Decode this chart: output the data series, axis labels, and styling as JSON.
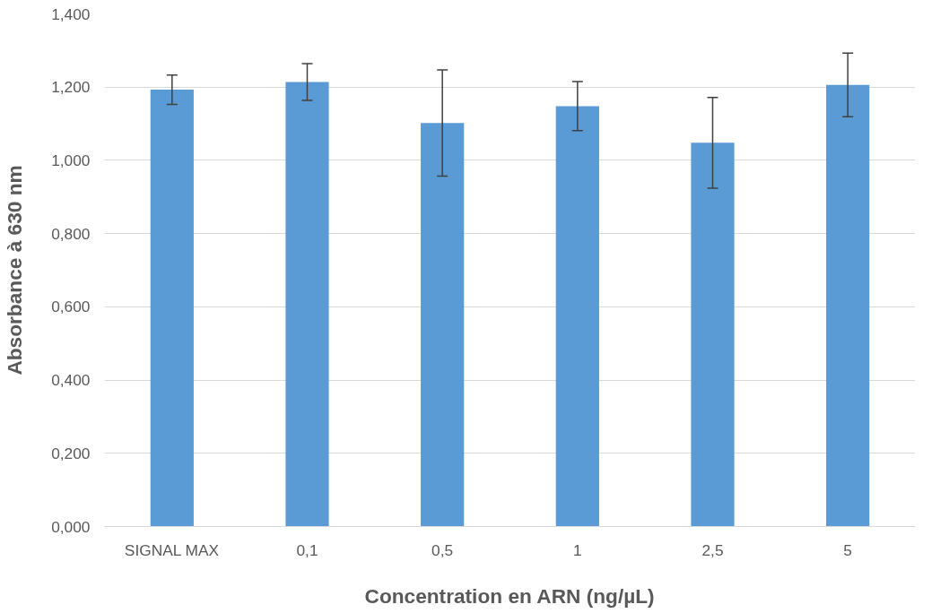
{
  "chart_data": {
    "type": "bar",
    "xlabel": "Concentration en ARN (ng/µL)",
    "ylabel": "Absorbance à 630 nm",
    "categories": [
      "SIGNAL MAX",
      "0,1",
      "0,5",
      "1",
      "2,5",
      "5"
    ],
    "values": [
      1.193,
      1.214,
      1.102,
      1.148,
      1.048,
      1.206
    ],
    "errors": [
      0.04,
      0.05,
      0.145,
      0.067,
      0.124,
      0.087
    ],
    "color": "#5b9bd5",
    "ylim": [
      0,
      1.4
    ],
    "yticks": [
      {
        "value": 0,
        "label": "0,000"
      },
      {
        "value": 0.2,
        "label": "0,200"
      },
      {
        "value": 0.4,
        "label": "0,400"
      },
      {
        "value": 0.6,
        "label": "0,600"
      },
      {
        "value": 0.8,
        "label": "0,800"
      },
      {
        "value": 1.0,
        "label": "1,000"
      },
      {
        "value": 1.2,
        "label": "1,200"
      },
      {
        "value": 1.4,
        "label": "1,400"
      }
    ],
    "grid": "y"
  }
}
